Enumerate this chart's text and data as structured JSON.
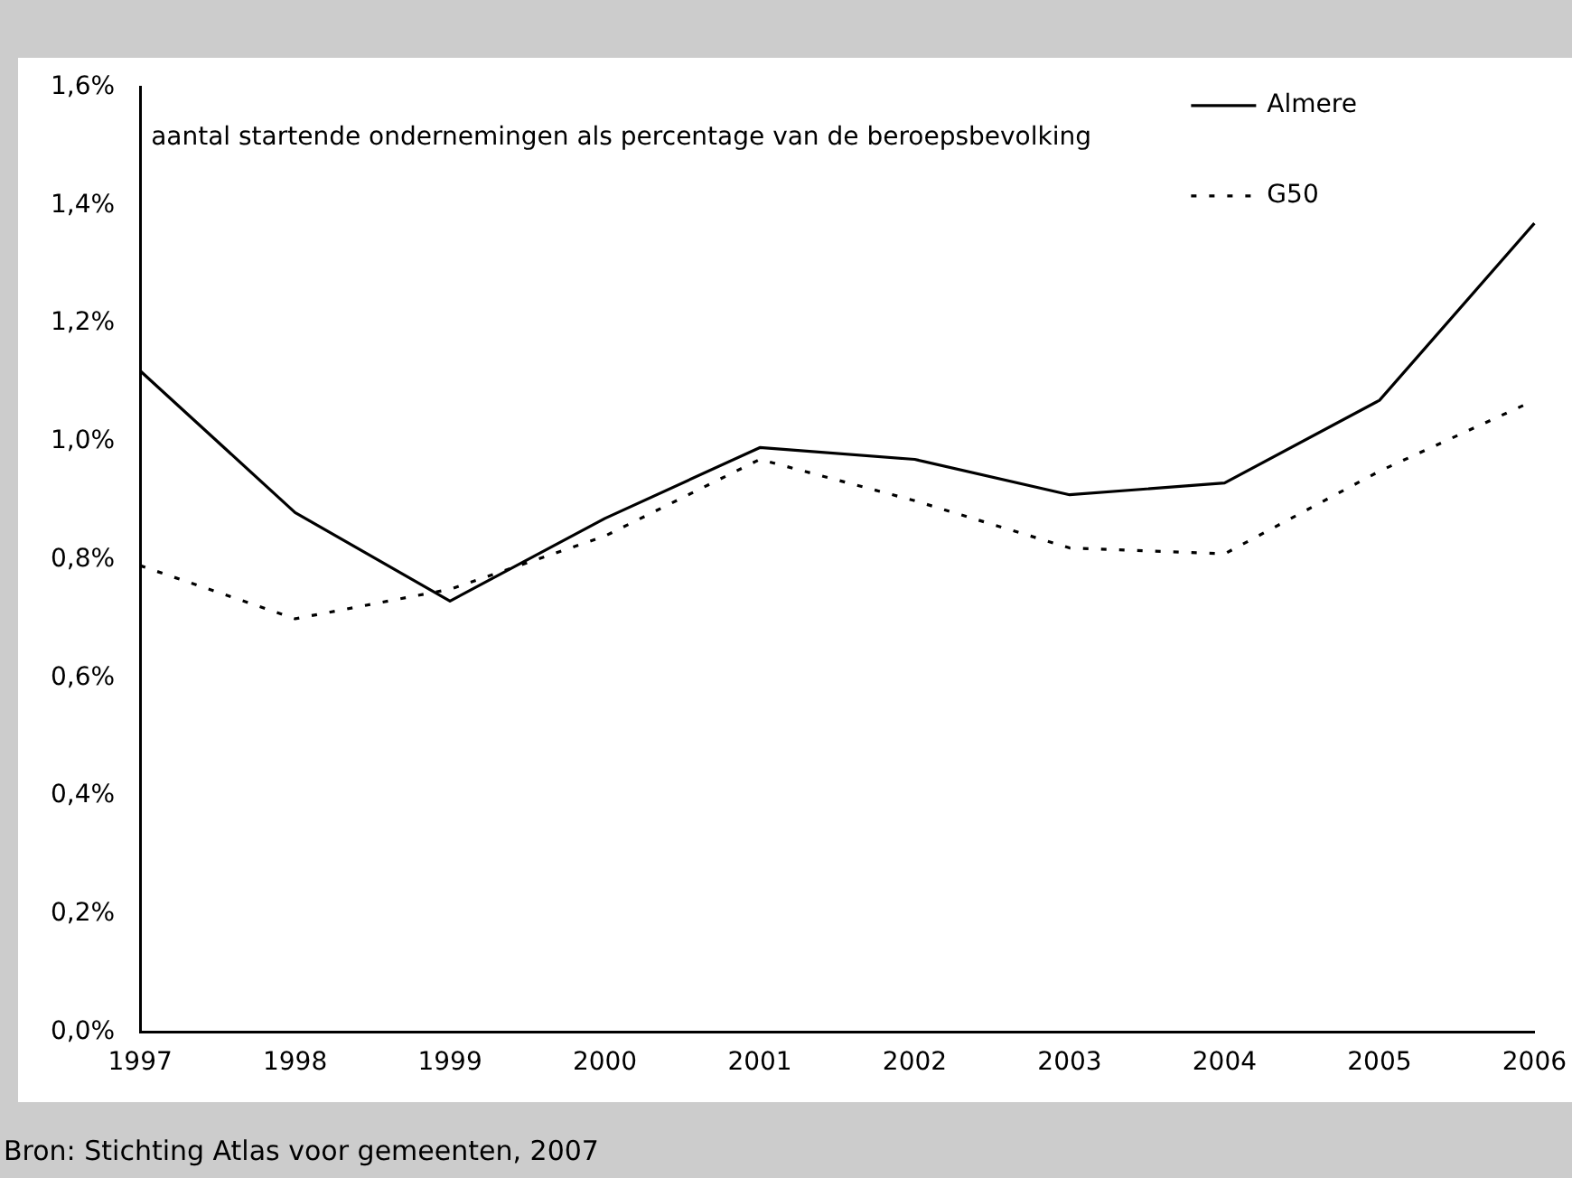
{
  "chart_data": {
    "type": "line",
    "categories": [
      "1997",
      "1998",
      "1999",
      "2000",
      "2001",
      "2002",
      "2003",
      "2004",
      "2005",
      "2006"
    ],
    "series": [
      {
        "name": "Almere",
        "color": "#000000",
        "line_style": "solid",
        "values": [
          1.12,
          0.88,
          0.73,
          0.87,
          0.99,
          0.97,
          0.91,
          0.93,
          1.07,
          1.37
        ]
      },
      {
        "name": "G50",
        "color": "#000000",
        "line_style": "dotted",
        "values": [
          0.79,
          0.7,
          0.75,
          0.84,
          0.97,
          0.9,
          0.82,
          0.81,
          0.95,
          1.07
        ]
      }
    ],
    "ylim": [
      0,
      1.6
    ],
    "yticks": [
      {
        "value": 0,
        "label": "0,0%"
      },
      {
        "value": 0.2,
        "label": "0,2%"
      },
      {
        "value": 0.4,
        "label": "0,4%"
      },
      {
        "value": 0.6,
        "label": "0,6%"
      },
      {
        "value": 0.8,
        "label": "0,8%"
      },
      {
        "value": 1,
        "label": "1,0%"
      },
      {
        "value": 1.2,
        "label": "1,2%"
      },
      {
        "value": 1.4,
        "label": "1,4%"
      },
      {
        "value": 1.6,
        "label": "1,6%"
      }
    ],
    "grid": false,
    "legend": "top right",
    "marker": "none",
    "annotations": [
      "aantal startende ondernemingen als percentage van de beroepsbevolking",
      "Bron: Stichting Atlas voor gemeenten, 2007"
    ]
  }
}
